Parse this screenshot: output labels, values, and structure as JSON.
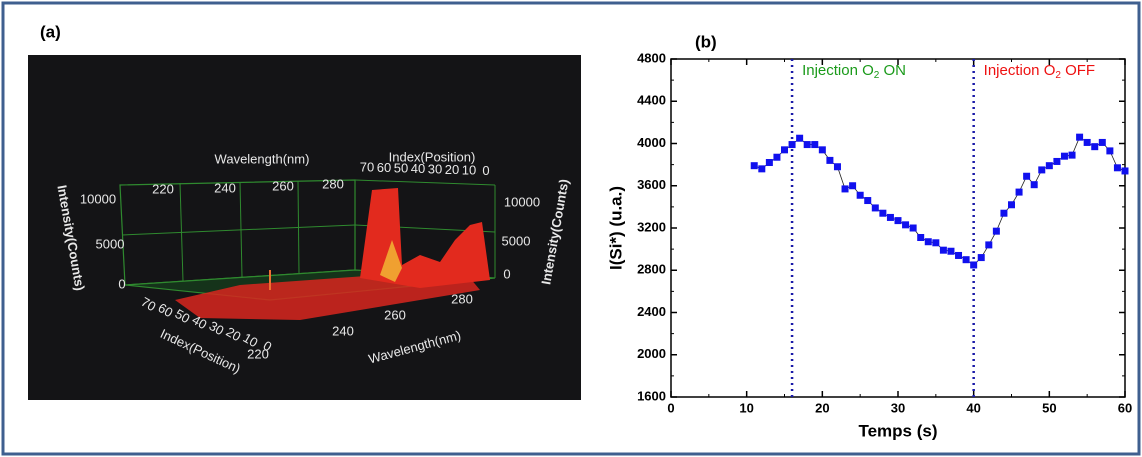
{
  "panel_a": {
    "label": "(a)",
    "top_wavelength_title": "Wavelength(nm)",
    "top_wavelength_ticks": [
      "220",
      "240",
      "260",
      "280"
    ],
    "top_index_title": "Index(Position)",
    "top_index_ticks": [
      "70",
      "60",
      "50",
      "40",
      "30",
      "20",
      "10",
      "0"
    ],
    "left_intensity_title": "Intensity(Counts)",
    "left_intensity_ticks": [
      "10000",
      "5000",
      "0"
    ],
    "right_intensity_title": "Intensity(Counts)",
    "right_intensity_ticks": [
      "10000",
      "5000",
      "0"
    ],
    "bottom_index_title": "Index(Position)",
    "bottom_index_ticks": [
      "70",
      "60",
      "50",
      "40",
      "30",
      "20",
      "10",
      "0"
    ],
    "bottom_wavelength_title": "Wavelength(nm)",
    "bottom_wavelength_ticks": [
      "220",
      "240",
      "260",
      "280"
    ]
  },
  "chart_data": {
    "type": "line",
    "panel_label": "(b)",
    "x_label": "Temps (s)",
    "y_label": "I(Si*) (u.a.)",
    "x": [
      11,
      12,
      13,
      14,
      15,
      16,
      17,
      18,
      19,
      20,
      21,
      22,
      23,
      24,
      25,
      26,
      27,
      28,
      29,
      30,
      31,
      32,
      33,
      34,
      35,
      36,
      37,
      38,
      39,
      40,
      41,
      42,
      43,
      44,
      45,
      46,
      47,
      48,
      49,
      50,
      51,
      52,
      53,
      54,
      55,
      56,
      57,
      58,
      59,
      60
    ],
    "values": [
      3790,
      3760,
      3820,
      3870,
      3940,
      3990,
      4050,
      3990,
      3990,
      3940,
      3840,
      3780,
      3570,
      3600,
      3510,
      3460,
      3390,
      3340,
      3300,
      3270,
      3230,
      3200,
      3110,
      3070,
      3060,
      2990,
      2980,
      2940,
      2900,
      2850,
      2920,
      3040,
      3170,
      3340,
      3420,
      3540,
      3690,
      3610,
      3750,
      3790,
      3830,
      3880,
      3890,
      4060,
      4010,
      3970,
      4010,
      3930,
      3770,
      3740
    ],
    "color": "#1010ee",
    "line_color": "#222222",
    "xlim": [
      0,
      60
    ],
    "xticks": [
      0,
      10,
      20,
      30,
      40,
      50,
      60
    ],
    "ylim": [
      1600,
      4800
    ],
    "yticks": [
      1600,
      2000,
      2400,
      2800,
      3200,
      3600,
      4000,
      4400,
      4800
    ],
    "minor_ticks": true,
    "vlines": [
      16,
      40
    ],
    "vline_color": "#1a1aa8",
    "annotations": [
      {
        "parts": [
          "Injection O",
          "2",
          " ON"
        ],
        "color": "#1a9a1a"
      },
      {
        "parts": [
          "Injection O",
          "2",
          " OFF"
        ],
        "color": "#ee1111"
      }
    ]
  }
}
